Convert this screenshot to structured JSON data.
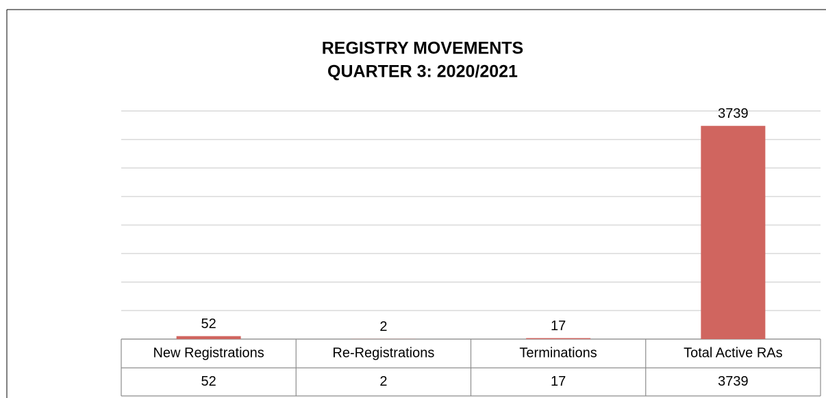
{
  "chart_data": {
    "type": "bar",
    "title": "REGISTRY MOVEMENTS",
    "subtitle": "QUARTER 3: 2020/2021",
    "categories": [
      "New Registrations",
      "Re-Registrations",
      "Terminations",
      "Total Active RAs"
    ],
    "values": [
      52,
      2,
      17,
      3739
    ],
    "color": "#d0655f",
    "ylim": [
      0,
      4000
    ],
    "yticks": [
      0,
      500,
      1000,
      1500,
      2000,
      2500,
      3000,
      3500,
      4000
    ],
    "grid": true
  }
}
